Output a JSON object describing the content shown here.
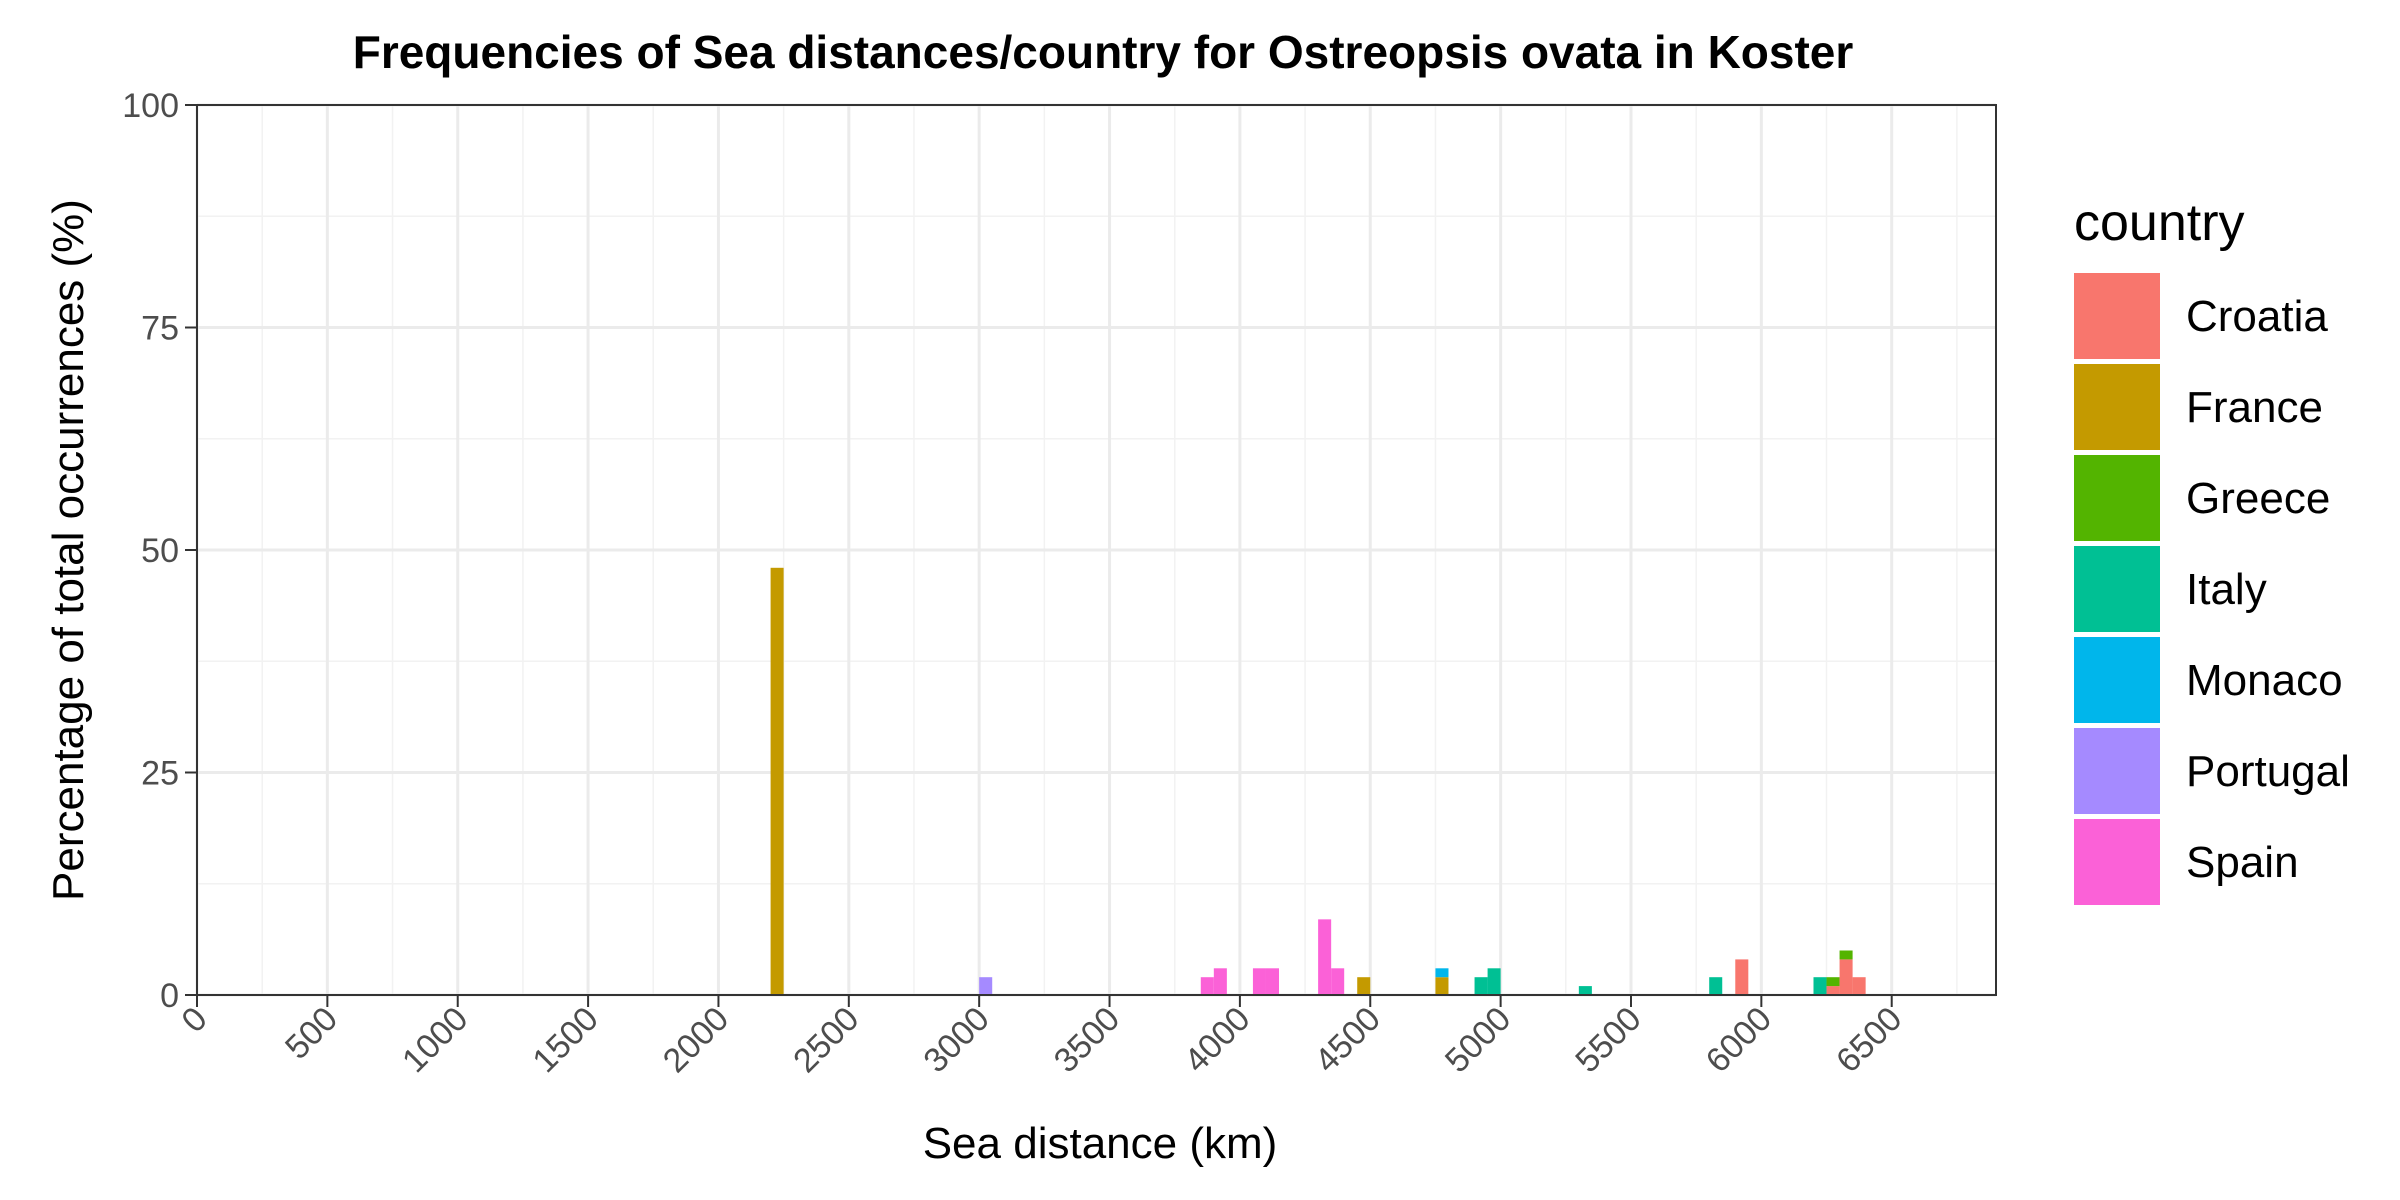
{
  "chart_data": {
    "type": "bar",
    "title": "Frequencies of Sea distances/country for Ostreopsis ovata in Koster",
    "xlabel": "Sea distance (km)",
    "ylabel": "Percentage of total occurrences (%)",
    "xlim": [
      0,
      6900
    ],
    "ylim": [
      0,
      100
    ],
    "x_ticks": [
      0,
      500,
      1000,
      1500,
      2000,
      2500,
      3000,
      3500,
      4000,
      4500,
      5000,
      5500,
      6000,
      6500
    ],
    "y_ticks": [
      0,
      25,
      50,
      75,
      100
    ],
    "bin_width": 50,
    "grid": true,
    "legend": {
      "title": "country",
      "placement": "right",
      "entries": [
        {
          "name": "Croatia",
          "color": "#F8766D"
        },
        {
          "name": "France",
          "color": "#C49A00"
        },
        {
          "name": "Greece",
          "color": "#53B400"
        },
        {
          "name": "Italy",
          "color": "#00C094"
        },
        {
          "name": "Monaco",
          "color": "#00B6EB"
        },
        {
          "name": "Portugal",
          "color": "#A58AFF"
        },
        {
          "name": "Spain",
          "color": "#FB61D7"
        }
      ]
    },
    "bars": [
      {
        "country": "France",
        "x": 2225,
        "value": 48
      },
      {
        "country": "Portugal",
        "x": 3025,
        "value": 2
      },
      {
        "country": "Spain",
        "x": 3875,
        "value": 2
      },
      {
        "country": "Spain",
        "x": 3925,
        "value": 3
      },
      {
        "country": "Spain",
        "x": 4075,
        "value": 3
      },
      {
        "country": "Spain",
        "x": 4125,
        "value": 3
      },
      {
        "country": "Spain",
        "x": 4325,
        "value": 8.5
      },
      {
        "country": "Spain",
        "x": 4375,
        "value": 3
      },
      {
        "country": "France",
        "x": 4475,
        "value": 2
      },
      {
        "country": "France",
        "x": 4775,
        "value": 2
      },
      {
        "country": "Monaco",
        "x": 4775,
        "value": 1
      },
      {
        "country": "Italy",
        "x": 4925,
        "value": 2
      },
      {
        "country": "Italy",
        "x": 4975,
        "value": 3
      },
      {
        "country": "Italy",
        "x": 5325,
        "value": 1
      },
      {
        "country": "Italy",
        "x": 5825,
        "value": 2
      },
      {
        "country": "Croatia",
        "x": 5925,
        "value": 4
      },
      {
        "country": "Italy",
        "x": 6225,
        "value": 2
      },
      {
        "country": "Croatia",
        "x": 6275,
        "value": 1
      },
      {
        "country": "Greece",
        "x": 6275,
        "value": 1
      },
      {
        "country": "Croatia",
        "x": 6325,
        "value": 4
      },
      {
        "country": "Greece",
        "x": 6325,
        "value": 1
      },
      {
        "country": "Croatia",
        "x": 6375,
        "value": 2
      }
    ]
  }
}
